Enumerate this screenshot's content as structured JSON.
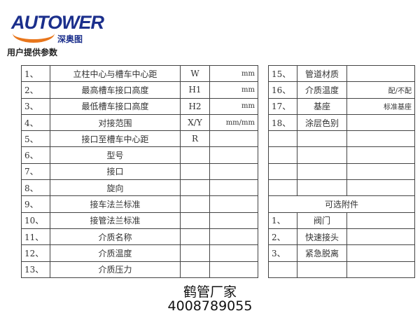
{
  "logo": {
    "brand": "AUTOWER",
    "cn": "深奥图",
    "accent": "#1b2f8c",
    "swoosh": "#e8761c"
  },
  "title": "用户提供参数",
  "left_rows": [
    [
      "1、",
      "立柱中心与槽车中心距",
      "W",
      "mm"
    ],
    [
      "2、",
      "最高槽车接口高度",
      "H1",
      "mm"
    ],
    [
      "3、",
      "最低槽车接口高度",
      "H2",
      "mm"
    ],
    [
      "4、",
      "对接范围",
      "X/Y",
      "mm/mm"
    ],
    [
      "5、",
      "接口至槽车中心距",
      "R",
      ""
    ],
    [
      "6、",
      "型号",
      "",
      ""
    ],
    [
      "7、",
      "接口",
      "",
      ""
    ],
    [
      "8、",
      "旋向",
      "",
      ""
    ],
    [
      "9、",
      "接车法兰标准",
      "",
      ""
    ],
    [
      "10、",
      "接管法兰标准",
      "",
      ""
    ],
    [
      "11、",
      "介质名称",
      "",
      ""
    ],
    [
      "12、",
      "介质温度",
      "",
      ""
    ],
    [
      "13、",
      "介质压力",
      "",
      ""
    ]
  ],
  "right_rows": [
    [
      "15、",
      "管道材质",
      ""
    ],
    [
      "16、",
      "介质温度",
      "配/不配"
    ],
    [
      "17、",
      "基座",
      "标准基座"
    ],
    [
      "18、",
      "涂层色别",
      ""
    ],
    [
      "",
      "",
      ""
    ],
    [
      "",
      "",
      ""
    ],
    [
      "",
      "",
      ""
    ],
    [
      "",
      "",
      ""
    ],
    [
      "可选附件"
    ],
    [
      "1、",
      "阀门",
      ""
    ],
    [
      "2、",
      "快速接头",
      ""
    ],
    [
      "3、",
      "紧急脱离",
      ""
    ],
    [
      "",
      "",
      ""
    ]
  ],
  "footer": {
    "line1": "鹤管厂家",
    "line2": "4008789055"
  }
}
